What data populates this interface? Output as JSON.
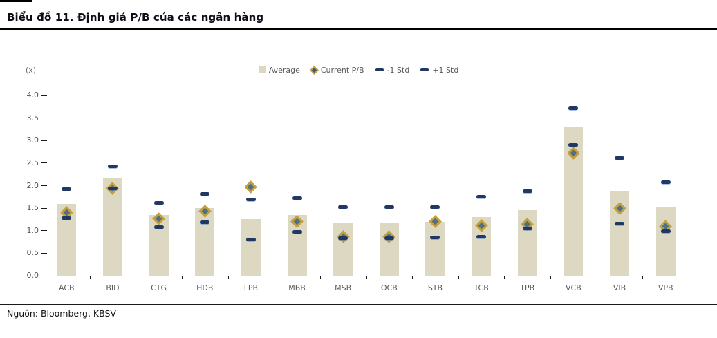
{
  "header": {
    "title": "Biểu đồ 11. Định giá P/B của các ngân hàng"
  },
  "footer": {
    "source": "Nguồn: Bloomberg, KBSV"
  },
  "chart_data": {
    "type": "bar",
    "title": "Biểu đồ 11. Định giá P/B của các ngân hàng",
    "unit_label": "(x)",
    "xlabel": "",
    "ylabel": "",
    "ylim": [
      0,
      4
    ],
    "ytick_step": 0.5,
    "grid": false,
    "legend_position": "top-center",
    "categories": [
      "ACB",
      "BID",
      "CTG",
      "HDB",
      "LPB",
      "MBB",
      "MSB",
      "OCB",
      "STB",
      "TCB",
      "TPB",
      "VCB",
      "VIB",
      "VPB"
    ],
    "series": [
      {
        "name": "Average",
        "marker": "bar",
        "color": "#ddd8c2",
        "values": [
          1.6,
          2.18,
          1.35,
          1.5,
          1.26,
          1.35,
          1.17,
          1.18,
          1.19,
          1.31,
          1.46,
          3.3,
          1.89,
          1.53
        ]
      },
      {
        "name": "Current P/B",
        "marker": "diamond",
        "color": "#c7a03c",
        "values": [
          1.4,
          1.94,
          1.27,
          1.43,
          1.97,
          1.2,
          0.86,
          0.86,
          1.2,
          1.11,
          1.14,
          2.72,
          1.5,
          1.09
        ]
      },
      {
        "name": "-1 Std",
        "marker": "dash",
        "color": "#1f3864",
        "values": [
          1.28,
          1.94,
          1.08,
          1.19,
          0.81,
          0.98,
          0.83,
          0.84,
          0.85,
          0.86,
          1.05,
          2.9,
          1.15,
          0.99
        ]
      },
      {
        "name": "+1 Std",
        "marker": "dash",
        "color": "#1f3864",
        "values": [
          1.92,
          2.43,
          1.62,
          1.82,
          1.7,
          1.73,
          1.53,
          1.52,
          1.53,
          1.76,
          1.87,
          3.71,
          2.62,
          2.07
        ]
      }
    ]
  }
}
